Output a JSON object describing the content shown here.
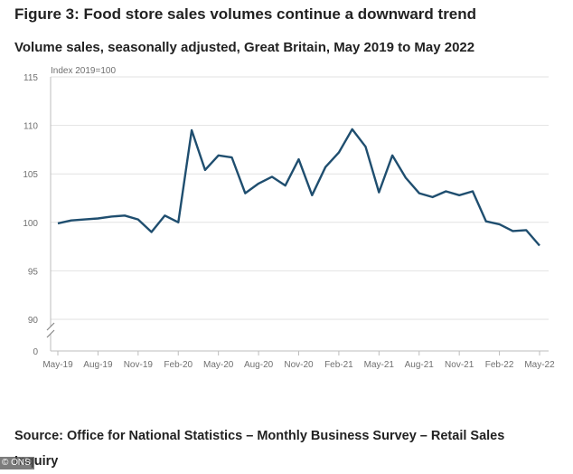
{
  "figure": {
    "title": "Figure 3: Food store sales volumes continue a downward trend",
    "subtitle": "Volume sales, seasonally adjusted, Great Britain, May 2019 to May 2022",
    "source": "Source: Office for National Statistics – Monthly Business Survey – Retail Sales Inquiry",
    "credit": "© ONS"
  },
  "chart_data": {
    "type": "line",
    "title": "Figure 3: Food store sales volumes continue a downward trend",
    "subtitle": "Volume sales, seasonally adjusted, Great Britain, May 2019 to May 2022",
    "ylabel": "Index 2019=100",
    "xlabel": "",
    "ylim": [
      90,
      115
    ],
    "y_axis_break": true,
    "y_break_label": "0",
    "yticks": [
      90,
      95,
      100,
      105,
      110,
      115
    ],
    "grid": "horizontal",
    "legend": "none",
    "line_color": "#1f4e6f",
    "x_tick_labels": [
      "May-19",
      "Aug-19",
      "Nov-19",
      "Feb-20",
      "May-20",
      "Aug-20",
      "Nov-20",
      "Feb-21",
      "May-21",
      "Aug-21",
      "Nov-21",
      "Feb-22",
      "May-22"
    ],
    "x": [
      "May-19",
      "Jun-19",
      "Jul-19",
      "Aug-19",
      "Sep-19",
      "Oct-19",
      "Nov-19",
      "Dec-19",
      "Jan-20",
      "Feb-20",
      "Mar-20",
      "Apr-20",
      "May-20",
      "Jun-20",
      "Jul-20",
      "Aug-20",
      "Sep-20",
      "Oct-20",
      "Nov-20",
      "Dec-20",
      "Jan-21",
      "Feb-21",
      "Mar-21",
      "Apr-21",
      "May-21",
      "Jun-21",
      "Jul-21",
      "Aug-21",
      "Sep-21",
      "Oct-21",
      "Nov-21",
      "Dec-21",
      "Jan-22",
      "Feb-22",
      "Mar-22",
      "Apr-22",
      "May-22"
    ],
    "values": [
      99.9,
      100.2,
      100.3,
      100.4,
      100.6,
      100.7,
      100.3,
      99.0,
      100.7,
      100.0,
      109.5,
      105.4,
      106.9,
      106.7,
      103.0,
      104.0,
      104.7,
      103.8,
      106.5,
      102.8,
      105.7,
      107.2,
      109.6,
      107.8,
      103.1,
      106.9,
      104.6,
      103.0,
      102.6,
      103.2,
      102.8,
      103.2,
      100.1,
      99.8,
      99.1,
      99.2,
      97.6
    ]
  }
}
